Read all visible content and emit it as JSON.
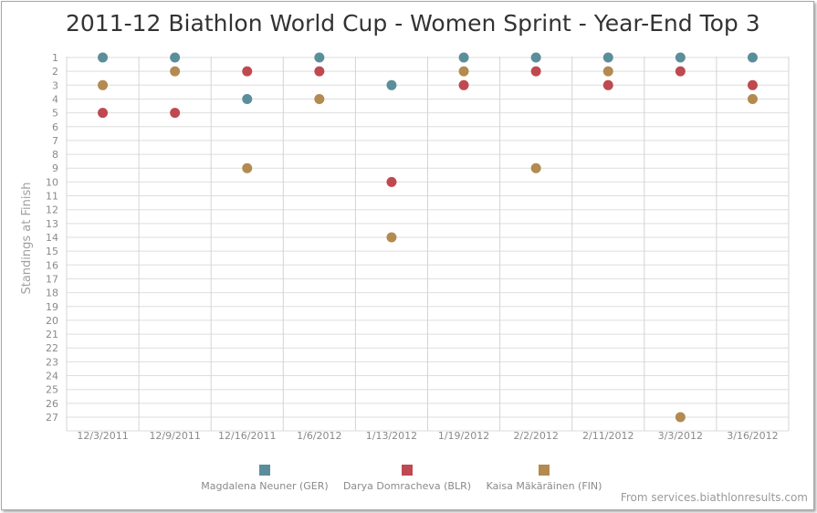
{
  "chart_data": {
    "type": "scatter",
    "title": "2011-12 Biathlon World Cup - Women Sprint - Year-End Top 3",
    "xlabel": "",
    "ylabel": "Standings at Finish",
    "y_reversed": true,
    "ylim": [
      1,
      27
    ],
    "y_ticks": [
      1,
      2,
      3,
      4,
      5,
      6,
      7,
      8,
      9,
      10,
      11,
      12,
      13,
      14,
      15,
      16,
      17,
      18,
      19,
      20,
      21,
      22,
      23,
      24,
      25,
      26,
      27
    ],
    "categories": [
      "12/3/2011",
      "12/9/2011",
      "12/16/2011",
      "1/6/2012",
      "1/13/2012",
      "1/19/2012",
      "2/2/2012",
      "2/11/2012",
      "3/3/2012",
      "3/16/2012"
    ],
    "legend_position": "bottom",
    "series": [
      {
        "name": "Magdalena Neuner (GER)",
        "color": "#5b8e9b",
        "values": [
          1,
          1,
          4,
          1,
          3,
          1,
          1,
          1,
          1,
          1
        ]
      },
      {
        "name": "Darya Domracheva (BLR)",
        "color": "#bf4950",
        "values": [
          5,
          5,
          2,
          2,
          10,
          3,
          2,
          3,
          2,
          3
        ]
      },
      {
        "name": "Kaisa Mäkäräinen (FIN)",
        "color": "#b38a50",
        "values": [
          3,
          2,
          9,
          4,
          14,
          2,
          9,
          2,
          27,
          4
        ]
      }
    ]
  },
  "footer": {
    "source": "From services.biathlonresults.com"
  }
}
